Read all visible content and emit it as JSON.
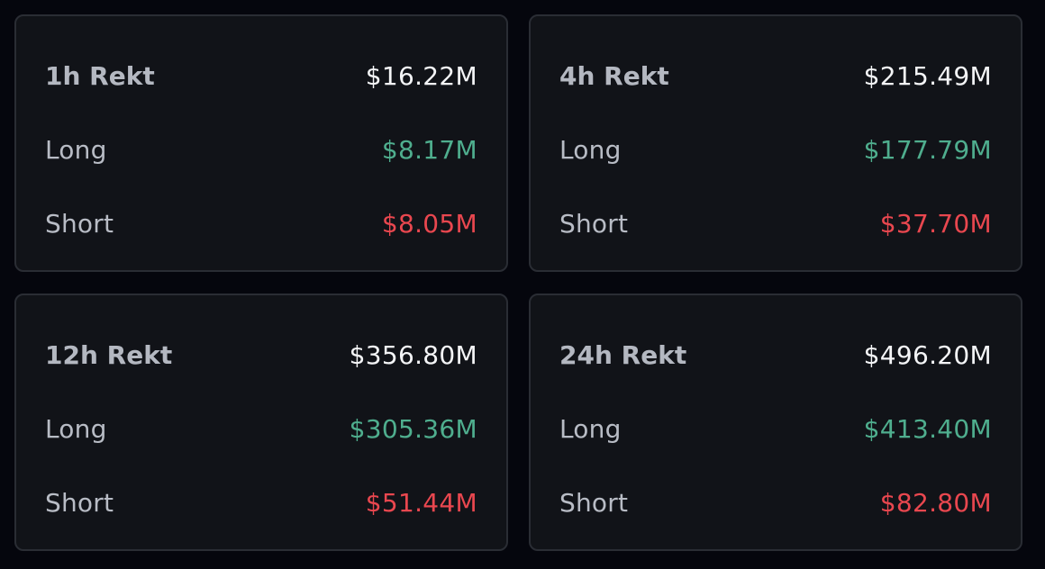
{
  "colors": {
    "background": "#05060d",
    "card": "#111318",
    "border": "#2a2d34",
    "long": "#4fae8e",
    "short": "#e9474f",
    "total": "#f4f5f7"
  },
  "cards": [
    {
      "title": "1h Rekt",
      "total": "$16.22M",
      "long_label": "Long",
      "long": "$8.17M",
      "short_label": "Short",
      "short": "$8.05M"
    },
    {
      "title": "4h Rekt",
      "total": "$215.49M",
      "long_label": "Long",
      "long": "$177.79M",
      "short_label": "Short",
      "short": "$37.70M"
    },
    {
      "title": "12h Rekt",
      "total": "$356.80M",
      "long_label": "Long",
      "long": "$305.36M",
      "short_label": "Short",
      "short": "$51.44M"
    },
    {
      "title": "24h Rekt",
      "total": "$496.20M",
      "long_label": "Long",
      "long": "$413.40M",
      "short_label": "Short",
      "short": "$82.80M"
    }
  ]
}
